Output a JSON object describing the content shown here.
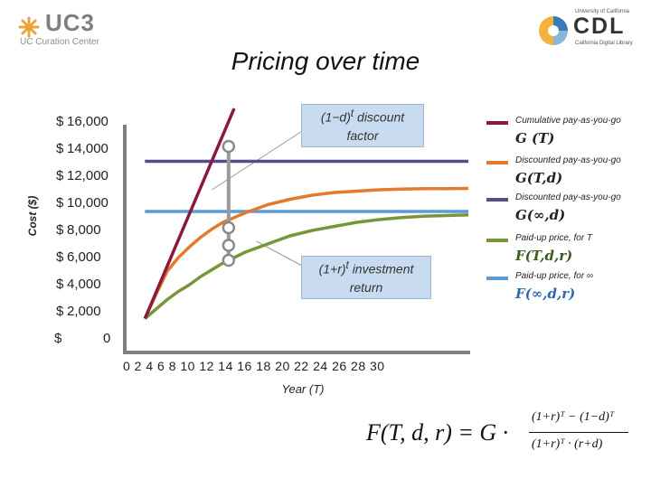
{
  "logos": {
    "uc3": {
      "text": "UC3",
      "subtitle": "UC Curation Center"
    },
    "cdl": {
      "top_text": "University of California",
      "text": "CDL",
      "subtitle": "California Digital Library"
    }
  },
  "chart_data": {
    "type": "line",
    "title": "Pricing over time",
    "xlabel": "Year (T)",
    "ylabel": "Cost ($)",
    "xlim": [
      0,
      30
    ],
    "ylim": [
      0,
      17000
    ],
    "x_ticks": [
      "0",
      "2",
      "4",
      "6",
      "8",
      "10",
      "12",
      "14",
      "16",
      "18",
      "20",
      "22",
      "24",
      "26",
      "28",
      "30"
    ],
    "y_ticks": [
      {
        "currency": "$",
        "value": 16000,
        "label": "16,000"
      },
      {
        "currency": "$",
        "value": 14000,
        "label": "14,000"
      },
      {
        "currency": "$",
        "value": 12000,
        "label": "12,000"
      },
      {
        "currency": "$",
        "value": 10000,
        "label": "10,000"
      },
      {
        "currency": "$",
        "value": 8000,
        "label": "8,000"
      },
      {
        "currency": "$",
        "value": 6000,
        "label": "6,000"
      },
      {
        "currency": "$",
        "value": 4000,
        "label": "4,000"
      },
      {
        "currency": "$",
        "value": 2000,
        "label": "2,000"
      },
      {
        "currency": "$",
        "value": 0,
        "label": "0"
      }
    ],
    "x": [
      1,
      2,
      3,
      4,
      5,
      6,
      7,
      8,
      10,
      12,
      14,
      16,
      18,
      20,
      22,
      24,
      26,
      28,
      30
    ],
    "series": [
      {
        "key": "G_T",
        "color": "#8b1a3a",
        "x": [
          1,
          9
        ],
        "values": [
          1500,
          17000
        ]
      },
      {
        "key": "G_T_d",
        "color": "#e47a2b",
        "values": [
          1500,
          3300,
          5000,
          6000,
          6800,
          7500,
          8100,
          8600,
          9300,
          9900,
          10300,
          10600,
          10800,
          10900,
          11000,
          11050,
          11080,
          11090,
          11100
        ]
      },
      {
        "key": "G_inf_d",
        "color": "#5b4a87",
        "values": [
          13100,
          13100,
          13100,
          13100,
          13100,
          13100,
          13100,
          13100,
          13100,
          13100,
          13100,
          13100,
          13100,
          13100,
          13100,
          13100,
          13100,
          13100,
          13100
        ]
      },
      {
        "key": "F_T_d_r",
        "color": "#77963b",
        "values": [
          1500,
          2200,
          2900,
          3500,
          4000,
          4600,
          5100,
          5600,
          6400,
          7000,
          7600,
          8000,
          8300,
          8600,
          8800,
          8950,
          9050,
          9100,
          9150
        ]
      },
      {
        "key": "F_inf_d_r",
        "color": "#5b9bd5",
        "values": [
          9400,
          9400,
          9400,
          9400,
          9400,
          9400,
          9400,
          9400,
          9400,
          9400,
          9400,
          9400,
          9400,
          9400,
          9400,
          9400,
          9400,
          9400,
          9400
        ]
      }
    ],
    "markers": {
      "x": 8.5,
      "values": [
        14200,
        8200,
        6900,
        5800
      ]
    },
    "annotations": {
      "discount": {
        "symbol": "(1−d)",
        "exp": "t",
        "label": "discount",
        "line2": "factor",
        "pointer": [
          7,
          11000
        ]
      },
      "investment": {
        "symbol": "(1+r)",
        "exp": "t",
        "label": "investment",
        "line2": "return",
        "pointer": [
          11,
          7200
        ]
      }
    }
  },
  "legend": [
    {
      "key": "G_T",
      "color": "#8b1a3a",
      "desc": "Cumulative pay-as-you-go",
      "symbol": "G (T)"
    },
    {
      "key": "G_T_d",
      "color": "#e47a2b",
      "desc": "Discounted pay-as-you-go",
      "symbol": "G(T,d)"
    },
    {
      "key": "G_inf_d",
      "color": "#5b4a87",
      "desc": "Discounted pay-as-you-go",
      "symbol": "G(∞,d)"
    },
    {
      "key": "F_T_d_r",
      "color": "#77963b",
      "desc": "Paid-up price, for T",
      "symbol": "F(T,d,r)"
    },
    {
      "key": "F_inf_d_r",
      "color": "#5b9bd5",
      "desc": "Paid-up price, for ∞",
      "symbol": "F(∞,d,r)"
    }
  ],
  "formula": {
    "lhs": "F(T, d, r) = G ·",
    "numerator": "(1+r)ᵀ − (1−d)ᵀ",
    "denominator": "(1+r)ᵀ · (r+d)"
  }
}
